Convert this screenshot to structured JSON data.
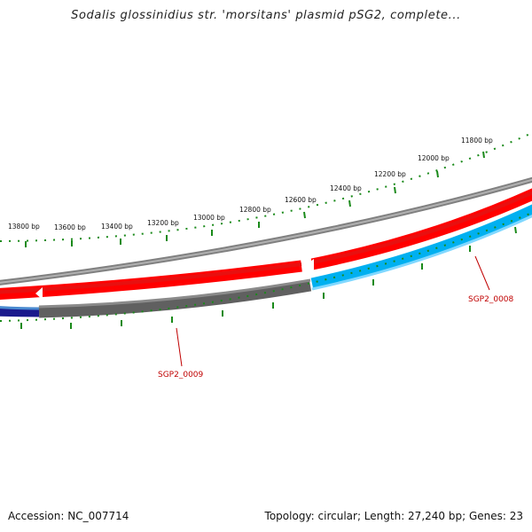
{
  "title": "Sodalis glossinidius str. 'morsitans' plasmid pSG2, complete...",
  "footer": {
    "accession": "Accession: NC_007714",
    "topology": "Topology: circular; Length: 27,240 bp; Genes: 23"
  },
  "tick_labels": [
    {
      "bp": 11800,
      "text": "11800 bp"
    },
    {
      "bp": 12000,
      "text": "12000 bp"
    },
    {
      "bp": 12200,
      "text": "12200 bp"
    },
    {
      "bp": 12400,
      "text": "12400 bp"
    },
    {
      "bp": 12600,
      "text": "12600 bp"
    },
    {
      "bp": 12800,
      "text": "12800 bp"
    },
    {
      "bp": 13000,
      "text": "13000 bp"
    },
    {
      "bp": 13200,
      "text": "13200 bp"
    },
    {
      "bp": 13400,
      "text": "13400 bp"
    },
    {
      "bp": 13600,
      "text": "13600 bp"
    },
    {
      "bp": 13800,
      "text": "13800 bp"
    }
  ],
  "gene_labels": [
    {
      "text": "SGP2_0008"
    },
    {
      "text": "SGP2_0009"
    }
  ],
  "colors": {
    "backbone": "#808080",
    "forward_feature": "#ff0000",
    "forward_feature_dark": "#c00000",
    "reverse_feature_a": "#00b0f0",
    "reverse_feature_b": "#606060",
    "reverse_feature_c": "#000080",
    "tick": "#1a8a1a",
    "gene_label": "#c00000"
  }
}
